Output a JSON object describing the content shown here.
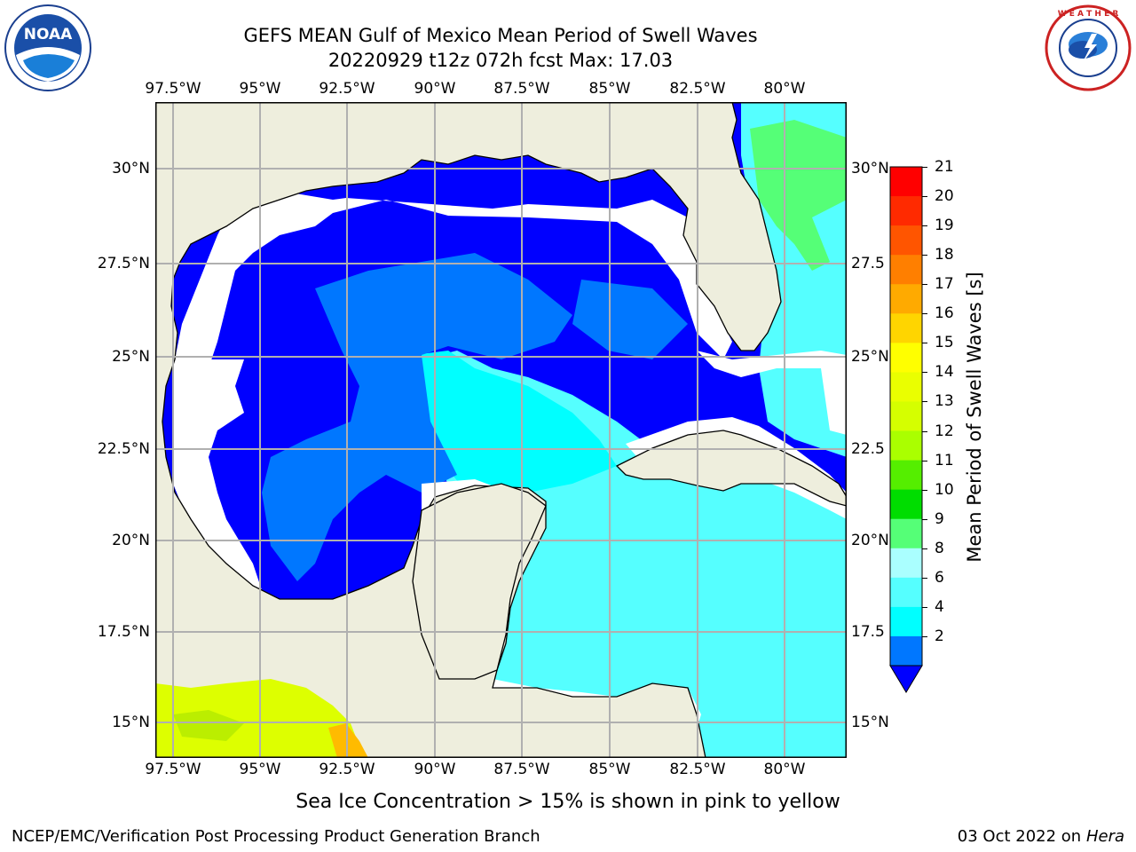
{
  "title_line1": "GEFS MEAN Gulf of Mexico Mean Period of Swell Waves",
  "title_line2": "20220929 t12z 072h fcst   Max: 17.03",
  "lon_labels": [
    "97.5°W",
    "95°W",
    "92.5°W",
    "90°W",
    "87.5°W",
    "85°W",
    "82.5°W",
    "80°W"
  ],
  "lat_labels": [
    "30°N",
    "27.5°N",
    "25°N",
    "22.5°N",
    "20°N",
    "17.5°N",
    "15°N"
  ],
  "lat_labels_right": [
    "30°N",
    "27.5",
    "25°N",
    "22.5",
    "20°N",
    "17.5",
    "15°N"
  ],
  "colorbar": {
    "label": "Mean Period of Swell Waves [s]",
    "ticks": [
      "21",
      "20",
      "19",
      "18",
      "17",
      "16",
      "15",
      "14",
      "13",
      "12",
      "11",
      "10",
      "9",
      "8",
      "6",
      "4",
      "2"
    ],
    "colors": [
      "#ff0000",
      "#ff2a00",
      "#ff5500",
      "#ff7f00",
      "#ffaa00",
      "#ffd500",
      "#ffff00",
      "#eaff00",
      "#d5ff00",
      "#aaff00",
      "#55ee00",
      "#00dd00",
      "#55ff77",
      "#aaffff",
      "#55ffff",
      "#00ffff",
      "#0077ff",
      "#0000ff"
    ]
  },
  "colors": {
    "land": "#eeeedd",
    "period_lt2": "#0000ff",
    "period_2_4": "#0077ff",
    "period_4_6": "#00ffff",
    "period_6_8": "#55ffff",
    "period_8_9": "#aaffff",
    "period_9_10": "#55ff77",
    "period_12_15": "#ddff00",
    "period_17": "#ffaa00",
    "grid": "#b0b0b0"
  },
  "sea_ice_note": "Sea Ice Concentration > 15% is shown in pink to yellow",
  "footer_left": "NCEP/EMC/Verification Post Processing Product Generation Branch",
  "footer_date": "03 Oct 2022 on",
  "footer_host": "Hera",
  "logos": {
    "left": "NOAA",
    "left_ring": "NATIONAL OCEANIC AND ATMOSPHERIC ADMINISTRATION · U.S. DEPARTMENT OF COMMERCE",
    "right_ring": "NATIONAL WEATHER SERVICE"
  }
}
